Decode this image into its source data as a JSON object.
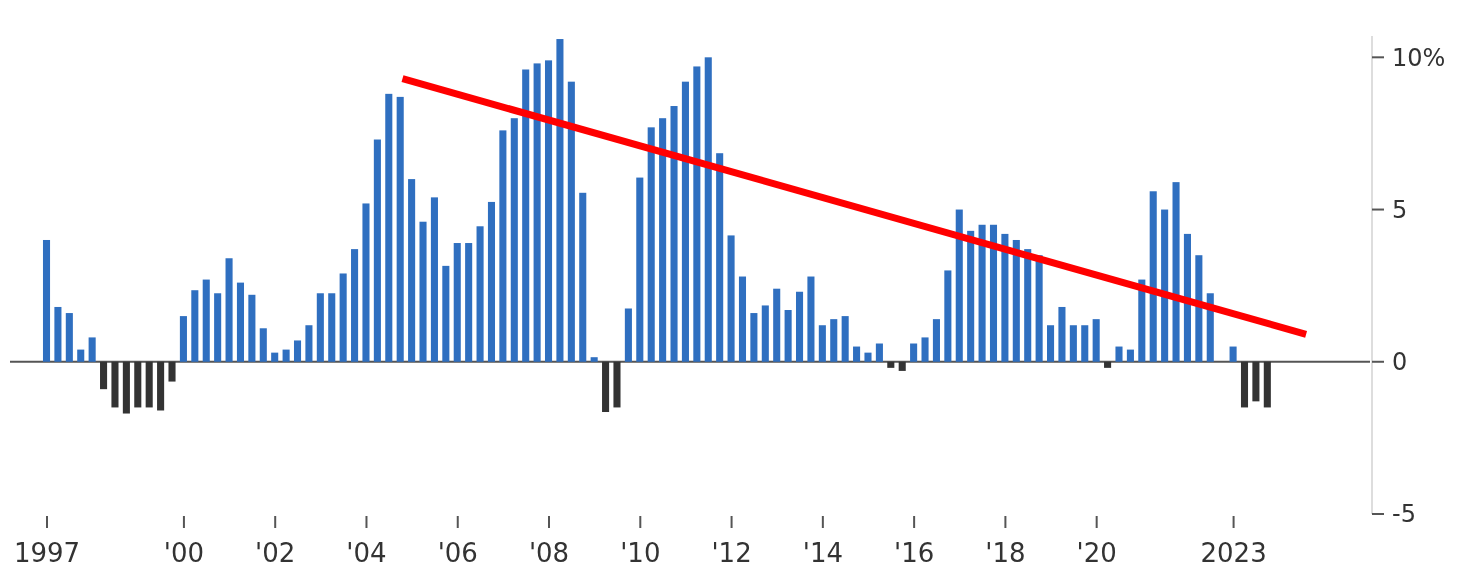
{
  "chart_data": {
    "type": "bar",
    "x": [
      1997,
      1997.25,
      1997.5,
      1997.75,
      1998,
      1998.25,
      1998.5,
      1998.75,
      1999,
      1999.25,
      1999.5,
      1999.75,
      2000,
      2000.25,
      2000.5,
      2000.75,
      2001,
      2001.25,
      2001.5,
      2001.75,
      2002,
      2002.25,
      2002.5,
      2002.75,
      2003,
      2003.25,
      2003.5,
      2003.75,
      2004,
      2004.25,
      2004.5,
      2004.75,
      2005,
      2005.25,
      2005.5,
      2005.75,
      2006,
      2006.25,
      2006.5,
      2006.75,
      2007,
      2007.25,
      2007.5,
      2007.75,
      2008,
      2008.25,
      2008.5,
      2008.75,
      2009,
      2009.25,
      2009.5,
      2009.75,
      2010,
      2010.25,
      2010.5,
      2010.75,
      2011,
      2011.25,
      2011.5,
      2011.75,
      2012,
      2012.25,
      2012.5,
      2012.75,
      2013,
      2013.25,
      2013.5,
      2013.75,
      2014,
      2014.25,
      2014.5,
      2014.75,
      2015,
      2015.25,
      2015.5,
      2015.75,
      2016,
      2016.25,
      2016.5,
      2016.75,
      2017,
      2017.25,
      2017.5,
      2017.75,
      2018,
      2018.25,
      2018.5,
      2018.75,
      2019,
      2019.25,
      2019.5,
      2019.75,
      2020,
      2020.25,
      2020.5,
      2020.75,
      2021,
      2021.25,
      2021.5,
      2021.75,
      2022,
      2022.25,
      2022.5,
      2022.75,
      2023,
      2023.25,
      2023.5,
      2023.75
    ],
    "series": [
      {
        "values": [
          4.0,
          1.8,
          1.6,
          0.4,
          0.8,
          -0.9,
          -1.5,
          -1.7,
          -1.5,
          -1.5,
          -1.6,
          -0.65,
          1.5,
          2.35,
          2.7,
          2.25,
          3.4,
          2.6,
          2.2,
          1.1,
          0.3,
          0.4,
          0.7,
          1.2,
          2.25,
          2.25,
          2.9,
          3.7,
          5.2,
          7.3,
          8.8,
          8.7,
          6.0,
          4.6,
          5.4,
          3.15,
          3.9,
          3.9,
          4.45,
          5.25,
          7.6,
          8.0,
          9.6,
          9.8,
          9.9,
          10.6,
          9.2,
          5.55,
          0.15,
          -1.65,
          -1.5,
          1.75,
          6.05,
          7.7,
          8.0,
          8.4,
          9.2,
          9.7,
          10.0,
          6.85,
          4.15,
          2.8,
          1.6,
          1.85,
          2.4,
          1.7,
          2.3,
          2.8,
          1.2,
          1.4,
          1.5,
          0.5,
          0.3,
          0.6,
          -0.2,
          -0.3,
          0.6,
          0.8,
          1.4,
          3.0,
          5.0,
          4.3,
          4.5,
          4.5,
          4.2,
          4.0,
          3.7,
          3.5,
          1.2,
          1.8,
          1.2,
          1.2,
          1.4,
          -0.2,
          0.5,
          0.4,
          2.7,
          5.6,
          5.0,
          5.9,
          4.2,
          3.5,
          2.25,
          null,
          0.5,
          -1.5,
          -1.3,
          -1.5
        ],
        "colors": [
          "#2f6fc0",
          "#2f6fc0",
          "#2f6fc0",
          "#2f6fc0",
          "#2f6fc0",
          "#333333",
          "#333333",
          "#333333",
          "#333333",
          "#333333",
          "#333333",
          "#333333",
          "#2f6fc0",
          "#2f6fc0",
          "#2f6fc0",
          "#2f6fc0",
          "#2f6fc0",
          "#2f6fc0",
          "#2f6fc0",
          "#2f6fc0",
          "#2f6fc0",
          "#2f6fc0",
          "#2f6fc0",
          "#2f6fc0",
          "#2f6fc0",
          "#2f6fc0",
          "#2f6fc0",
          "#2f6fc0",
          "#2f6fc0",
          "#2f6fc0",
          "#2f6fc0",
          "#2f6fc0",
          "#2f6fc0",
          "#2f6fc0",
          "#2f6fc0",
          "#2f6fc0",
          "#2f6fc0",
          "#2f6fc0",
          "#2f6fc0",
          "#2f6fc0",
          "#2f6fc0",
          "#2f6fc0",
          "#2f6fc0",
          "#2f6fc0",
          "#2f6fc0",
          "#2f6fc0",
          "#2f6fc0",
          "#2f6fc0",
          "#2f6fc0",
          "#333333",
          "#333333",
          "#2f6fc0",
          "#2f6fc0",
          "#2f6fc0",
          "#2f6fc0",
          "#2f6fc0",
          "#2f6fc0",
          "#2f6fc0",
          "#2f6fc0",
          "#2f6fc0",
          "#2f6fc0",
          "#2f6fc0",
          "#2f6fc0",
          "#2f6fc0",
          "#2f6fc0",
          "#2f6fc0",
          "#2f6fc0",
          "#2f6fc0",
          "#2f6fc0",
          "#2f6fc0",
          "#2f6fc0",
          "#2f6fc0",
          "#2f6fc0",
          "#2f6fc0",
          "#333333",
          "#333333",
          "#2f6fc0",
          "#2f6fc0",
          "#2f6fc0",
          "#2f6fc0",
          "#2f6fc0",
          "#2f6fc0",
          "#2f6fc0",
          "#2f6fc0",
          "#2f6fc0",
          "#2f6fc0",
          "#2f6fc0",
          "#2f6fc0",
          "#2f6fc0",
          "#2f6fc0",
          "#2f6fc0",
          "#2f6fc0",
          "#2f6fc0",
          "#333333",
          "#2f6fc0",
          "#2f6fc0",
          "#2f6fc0",
          "#2f6fc0",
          "#2f6fc0",
          "#2f6fc0",
          "#2f6fc0",
          "#2f6fc0",
          "#2f6fc0",
          "#2f6fc0",
          "#2f6fc0",
          "#333333",
          "#333333",
          "#333333"
        ]
      },
      {
        "type": "line",
        "x": [
          2004.8,
          2024.6
        ],
        "values": [
          9.3,
          0.9
        ],
        "color": "#ff0000"
      }
    ],
    "xlim": [
      1996.2,
      2026.0
    ],
    "xticks": [
      1997,
      {
        "value": 2000,
        "label": "'00"
      },
      {
        "value": 2002,
        "label": "'02"
      },
      {
        "value": 2004,
        "label": "'04"
      },
      {
        "value": 2006,
        "label": "'06"
      },
      {
        "value": 2008,
        "label": "'08"
      },
      {
        "value": 2010,
        "label": "'10"
      },
      {
        "value": 2012,
        "label": "'12"
      },
      {
        "value": 2014,
        "label": "'14"
      },
      {
        "value": 2016,
        "label": "'16"
      },
      {
        "value": 2018,
        "label": "'18"
      },
      {
        "value": 2020,
        "label": "'20"
      },
      2023
    ],
    "ylim": [
      -5,
      10.7
    ],
    "yticks": [
      {
        "value": -5,
        "label": "-5"
      },
      0,
      5,
      {
        "value": 10,
        "label": "10%"
      }
    ],
    "line_style": "solid"
  }
}
